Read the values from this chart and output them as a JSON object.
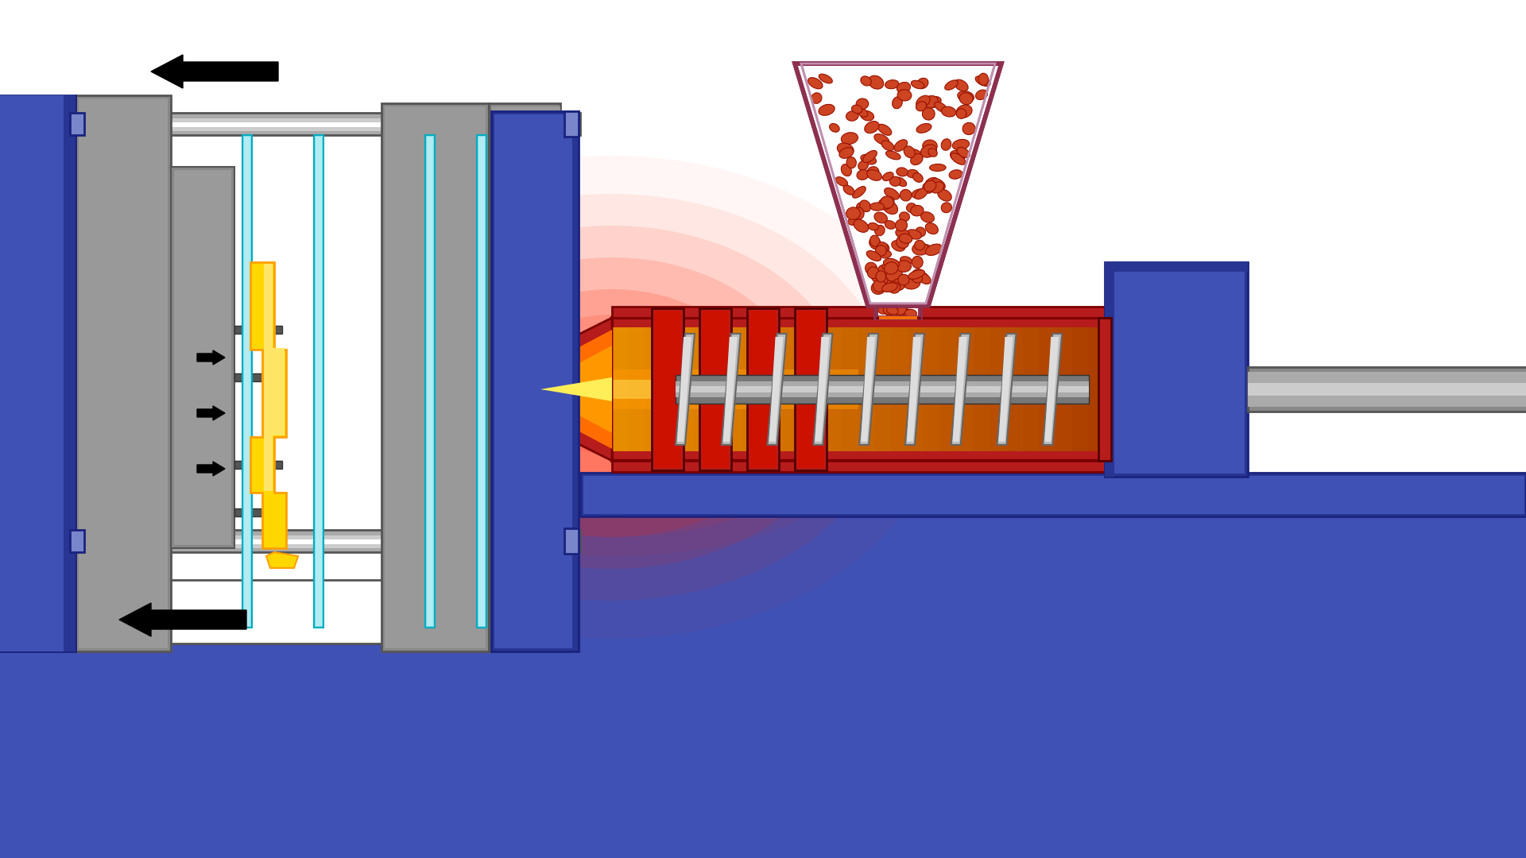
{
  "bg": "#FFFFFF",
  "blue_dark": "#283593",
  "blue_mid": "#3F51B5",
  "blue_light": "#7986CB",
  "gray_dark": "#555555",
  "gray_med": "#888888",
  "gray_light": "#AAAAAA",
  "gray_vlight": "#CCCCCC",
  "gray_ultralight": "#DDDDDD",
  "white": "#FFFFFF",
  "yellow": "#FFD700",
  "yellow_dark": "#FFA000",
  "cyan": "#80DEEA",
  "cyan_dark": "#00ACC1",
  "red_dark": "#B71C1C",
  "red_med": "#CC2200",
  "red_bright": "#FF3300",
  "orange_dark": "#E65100",
  "orange": "#FF6D00",
  "orange_light": "#FF9800",
  "orange_vlight": "#FFB74D",
  "hopper_border": "#8D3050",
  "pellet": "#CC4422",
  "heat_red": "#FF2200"
}
